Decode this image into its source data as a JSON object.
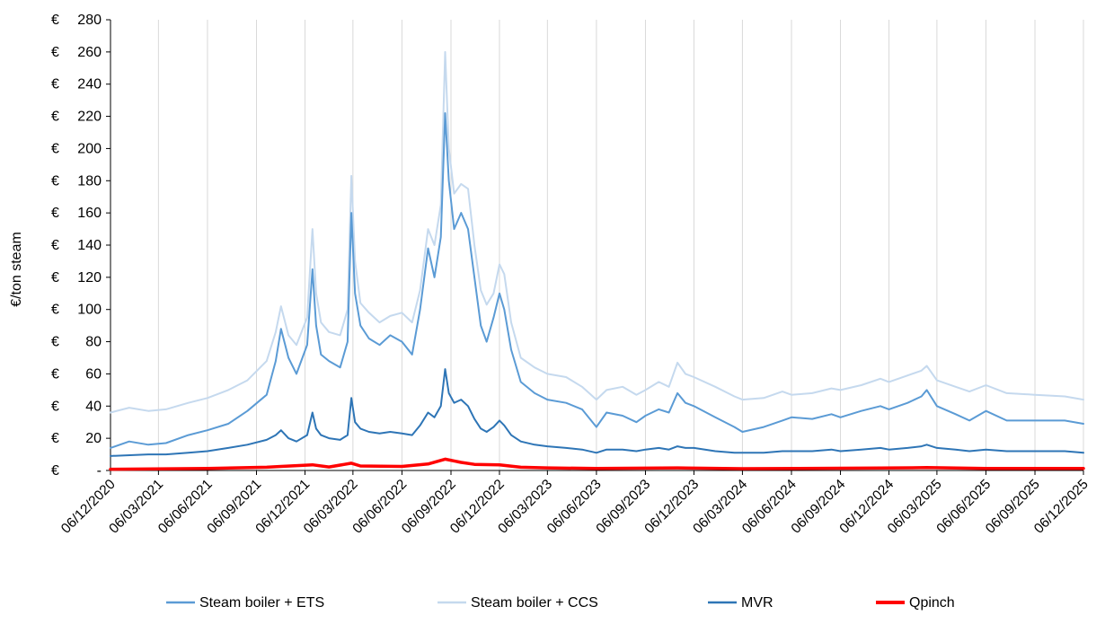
{
  "chart_data": {
    "type": "line",
    "title": "",
    "xlabel": "",
    "ylabel": "€/ton steam",
    "y_unit_prefix": "€",
    "ylim": [
      0,
      280
    ],
    "y_ticks": [
      "€ -",
      "€ 20",
      "€ 40",
      "€ 60",
      "€ 80",
      "€ 100",
      "€ 120",
      "€ 140",
      "€ 160",
      "€ 180",
      "€ 200",
      "€ 220",
      "€ 240",
      "€ 260",
      "€ 280"
    ],
    "x_range": [
      "2020-12-06",
      "2025-12-06"
    ],
    "x_ticks": [
      "06/12/2020",
      "06/03/2021",
      "06/06/2021",
      "06/09/2021",
      "06/12/2021",
      "06/03/2022",
      "06/06/2022",
      "06/09/2022",
      "06/12/2022",
      "06/03/2023",
      "06/06/2023",
      "06/09/2023",
      "06/12/2023",
      "06/03/2024",
      "06/06/2024",
      "06/09/2024",
      "06/12/2024",
      "06/03/2025",
      "06/06/2025",
      "06/09/2025",
      "06/12/2025"
    ],
    "grid": "vertical",
    "legend_position": "bottom",
    "series": [
      {
        "name": "Steam boiler + CCS",
        "color": "#c5d9ee",
        "width": 2,
        "points": [
          [
            "2020-12-06",
            36
          ],
          [
            "2021-01-10",
            39
          ],
          [
            "2021-02-15",
            37
          ],
          [
            "2021-03-20",
            38
          ],
          [
            "2021-05-01",
            42
          ],
          [
            "2021-06-06",
            45
          ],
          [
            "2021-07-15",
            50
          ],
          [
            "2021-08-20",
            56
          ],
          [
            "2021-09-25",
            68
          ],
          [
            "2021-10-12",
            86
          ],
          [
            "2021-10-22",
            102
          ],
          [
            "2021-11-05",
            84
          ],
          [
            "2021-11-20",
            78
          ],
          [
            "2021-12-10",
            95
          ],
          [
            "2021-12-20",
            150
          ],
          [
            "2021-12-27",
            110
          ],
          [
            "2022-01-05",
            92
          ],
          [
            "2022-01-20",
            86
          ],
          [
            "2022-02-10",
            84
          ],
          [
            "2022-02-24",
            100
          ],
          [
            "2022-03-03",
            183
          ],
          [
            "2022-03-10",
            130
          ],
          [
            "2022-03-20",
            104
          ],
          [
            "2022-04-05",
            98
          ],
          [
            "2022-04-25",
            92
          ],
          [
            "2022-05-15",
            96
          ],
          [
            "2022-06-06",
            98
          ],
          [
            "2022-06-25",
            92
          ],
          [
            "2022-07-10",
            112
          ],
          [
            "2022-07-25",
            150
          ],
          [
            "2022-08-06",
            140
          ],
          [
            "2022-08-18",
            165
          ],
          [
            "2022-08-26",
            260
          ],
          [
            "2022-09-02",
            200
          ],
          [
            "2022-09-12",
            172
          ],
          [
            "2022-09-25",
            178
          ],
          [
            "2022-10-08",
            175
          ],
          [
            "2022-10-20",
            140
          ],
          [
            "2022-11-01",
            112
          ],
          [
            "2022-11-12",
            103
          ],
          [
            "2022-11-25",
            110
          ],
          [
            "2022-12-06",
            128
          ],
          [
            "2022-12-15",
            122
          ],
          [
            "2022-12-28",
            92
          ],
          [
            "2023-01-15",
            70
          ],
          [
            "2023-02-10",
            64
          ],
          [
            "2023-03-06",
            60
          ],
          [
            "2023-04-10",
            58
          ],
          [
            "2023-05-10",
            52
          ],
          [
            "2023-06-06",
            44
          ],
          [
            "2023-06-25",
            50
          ],
          [
            "2023-07-25",
            52
          ],
          [
            "2023-08-20",
            47
          ],
          [
            "2023-09-06",
            50
          ],
          [
            "2023-10-01",
            55
          ],
          [
            "2023-10-20",
            52
          ],
          [
            "2023-11-05",
            67
          ],
          [
            "2023-11-20",
            60
          ],
          [
            "2023-12-06",
            58
          ],
          [
            "2024-01-15",
            52
          ],
          [
            "2024-02-20",
            46
          ],
          [
            "2024-03-06",
            44
          ],
          [
            "2024-04-15",
            45
          ],
          [
            "2024-05-20",
            49
          ],
          [
            "2024-06-06",
            47
          ],
          [
            "2024-07-15",
            48
          ],
          [
            "2024-08-20",
            51
          ],
          [
            "2024-09-06",
            50
          ],
          [
            "2024-10-15",
            53
          ],
          [
            "2024-11-20",
            57
          ],
          [
            "2024-12-06",
            55
          ],
          [
            "2025-01-10",
            59
          ],
          [
            "2025-02-05",
            62
          ],
          [
            "2025-02-15",
            65
          ],
          [
            "2025-03-06",
            56
          ],
          [
            "2025-04-10",
            52
          ],
          [
            "2025-05-06",
            49
          ],
          [
            "2025-06-06",
            53
          ],
          [
            "2025-07-15",
            48
          ],
          [
            "2025-09-06",
            47
          ],
          [
            "2025-11-01",
            46
          ],
          [
            "2025-12-06",
            44
          ]
        ]
      },
      {
        "name": "Steam boiler + ETS",
        "color": "#5b9bd5",
        "width": 2,
        "points": [
          [
            "2020-12-06",
            14
          ],
          [
            "2021-01-10",
            18
          ],
          [
            "2021-02-15",
            16
          ],
          [
            "2021-03-20",
            17
          ],
          [
            "2021-05-01",
            22
          ],
          [
            "2021-06-06",
            25
          ],
          [
            "2021-07-15",
            29
          ],
          [
            "2021-08-20",
            37
          ],
          [
            "2021-09-25",
            47
          ],
          [
            "2021-10-12",
            68
          ],
          [
            "2021-10-22",
            88
          ],
          [
            "2021-11-05",
            70
          ],
          [
            "2021-11-20",
            60
          ],
          [
            "2021-12-10",
            78
          ],
          [
            "2021-12-20",
            125
          ],
          [
            "2021-12-27",
            90
          ],
          [
            "2022-01-05",
            72
          ],
          [
            "2022-01-20",
            68
          ],
          [
            "2022-02-10",
            64
          ],
          [
            "2022-02-24",
            80
          ],
          [
            "2022-03-03",
            160
          ],
          [
            "2022-03-10",
            110
          ],
          [
            "2022-03-20",
            90
          ],
          [
            "2022-04-05",
            82
          ],
          [
            "2022-04-25",
            78
          ],
          [
            "2022-05-15",
            84
          ],
          [
            "2022-06-06",
            80
          ],
          [
            "2022-06-25",
            72
          ],
          [
            "2022-07-10",
            100
          ],
          [
            "2022-07-25",
            138
          ],
          [
            "2022-08-06",
            120
          ],
          [
            "2022-08-18",
            145
          ],
          [
            "2022-08-26",
            222
          ],
          [
            "2022-09-02",
            180
          ],
          [
            "2022-09-12",
            150
          ],
          [
            "2022-09-25",
            160
          ],
          [
            "2022-10-08",
            150
          ],
          [
            "2022-10-20",
            120
          ],
          [
            "2022-11-01",
            90
          ],
          [
            "2022-11-12",
            80
          ],
          [
            "2022-11-25",
            95
          ],
          [
            "2022-12-06",
            110
          ],
          [
            "2022-12-15",
            100
          ],
          [
            "2022-12-28",
            75
          ],
          [
            "2023-01-15",
            55
          ],
          [
            "2023-02-10",
            48
          ],
          [
            "2023-03-06",
            44
          ],
          [
            "2023-04-10",
            42
          ],
          [
            "2023-05-10",
            38
          ],
          [
            "2023-06-06",
            27
          ],
          [
            "2023-06-25",
            36
          ],
          [
            "2023-07-25",
            34
          ],
          [
            "2023-08-20",
            30
          ],
          [
            "2023-09-06",
            34
          ],
          [
            "2023-10-01",
            38
          ],
          [
            "2023-10-20",
            36
          ],
          [
            "2023-11-05",
            48
          ],
          [
            "2023-11-20",
            42
          ],
          [
            "2023-12-06",
            40
          ],
          [
            "2024-01-15",
            33
          ],
          [
            "2024-02-20",
            27
          ],
          [
            "2024-03-06",
            24
          ],
          [
            "2024-04-15",
            27
          ],
          [
            "2024-05-20",
            31
          ],
          [
            "2024-06-06",
            33
          ],
          [
            "2024-07-15",
            32
          ],
          [
            "2024-08-20",
            35
          ],
          [
            "2024-09-06",
            33
          ],
          [
            "2024-10-15",
            37
          ],
          [
            "2024-11-20",
            40
          ],
          [
            "2024-12-06",
            38
          ],
          [
            "2025-01-10",
            42
          ],
          [
            "2025-02-05",
            46
          ],
          [
            "2025-02-15",
            50
          ],
          [
            "2025-03-06",
            40
          ],
          [
            "2025-04-10",
            35
          ],
          [
            "2025-05-06",
            31
          ],
          [
            "2025-06-06",
            37
          ],
          [
            "2025-07-15",
            31
          ],
          [
            "2025-09-06",
            31
          ],
          [
            "2025-11-01",
            31
          ],
          [
            "2025-12-06",
            29
          ]
        ]
      },
      {
        "name": "MVR",
        "color": "#2e75b6",
        "width": 2,
        "points": [
          [
            "2020-12-06",
            9
          ],
          [
            "2021-02-15",
            10
          ],
          [
            "2021-03-20",
            10
          ],
          [
            "2021-05-01",
            11
          ],
          [
            "2021-06-06",
            12
          ],
          [
            "2021-07-15",
            14
          ],
          [
            "2021-08-20",
            16
          ],
          [
            "2021-09-25",
            19
          ],
          [
            "2021-10-12",
            22
          ],
          [
            "2021-10-22",
            25
          ],
          [
            "2021-11-05",
            20
          ],
          [
            "2021-11-20",
            18
          ],
          [
            "2021-12-10",
            22
          ],
          [
            "2021-12-20",
            36
          ],
          [
            "2021-12-27",
            26
          ],
          [
            "2022-01-05",
            22
          ],
          [
            "2022-01-20",
            20
          ],
          [
            "2022-02-10",
            19
          ],
          [
            "2022-02-24",
            22
          ],
          [
            "2022-03-03",
            45
          ],
          [
            "2022-03-10",
            30
          ],
          [
            "2022-03-20",
            26
          ],
          [
            "2022-04-05",
            24
          ],
          [
            "2022-04-25",
            23
          ],
          [
            "2022-05-15",
            24
          ],
          [
            "2022-06-06",
            23
          ],
          [
            "2022-06-25",
            22
          ],
          [
            "2022-07-10",
            28
          ],
          [
            "2022-07-25",
            36
          ],
          [
            "2022-08-06",
            33
          ],
          [
            "2022-08-18",
            40
          ],
          [
            "2022-08-26",
            63
          ],
          [
            "2022-09-02",
            48
          ],
          [
            "2022-09-12",
            42
          ],
          [
            "2022-09-25",
            44
          ],
          [
            "2022-10-08",
            40
          ],
          [
            "2022-10-20",
            32
          ],
          [
            "2022-11-01",
            26
          ],
          [
            "2022-11-12",
            24
          ],
          [
            "2022-11-25",
            27
          ],
          [
            "2022-12-06",
            31
          ],
          [
            "2022-12-15",
            28
          ],
          [
            "2022-12-28",
            22
          ],
          [
            "2023-01-15",
            18
          ],
          [
            "2023-02-10",
            16
          ],
          [
            "2023-03-06",
            15
          ],
          [
            "2023-04-10",
            14
          ],
          [
            "2023-05-10",
            13
          ],
          [
            "2023-06-06",
            11
          ],
          [
            "2023-06-25",
            13
          ],
          [
            "2023-07-25",
            13
          ],
          [
            "2023-08-20",
            12
          ],
          [
            "2023-09-06",
            13
          ],
          [
            "2023-10-01",
            14
          ],
          [
            "2023-10-20",
            13
          ],
          [
            "2023-11-05",
            15
          ],
          [
            "2023-11-20",
            14
          ],
          [
            "2023-12-06",
            14
          ],
          [
            "2024-01-15",
            12
          ],
          [
            "2024-02-20",
            11
          ],
          [
            "2024-03-06",
            11
          ],
          [
            "2024-04-15",
            11
          ],
          [
            "2024-05-20",
            12
          ],
          [
            "2024-06-06",
            12
          ],
          [
            "2024-07-15",
            12
          ],
          [
            "2024-08-20",
            13
          ],
          [
            "2024-09-06",
            12
          ],
          [
            "2024-10-15",
            13
          ],
          [
            "2024-11-20",
            14
          ],
          [
            "2024-12-06",
            13
          ],
          [
            "2025-01-10",
            14
          ],
          [
            "2025-02-05",
            15
          ],
          [
            "2025-02-15",
            16
          ],
          [
            "2025-03-06",
            14
          ],
          [
            "2025-04-10",
            13
          ],
          [
            "2025-05-06",
            12
          ],
          [
            "2025-06-06",
            13
          ],
          [
            "2025-07-15",
            12
          ],
          [
            "2025-09-06",
            12
          ],
          [
            "2025-11-01",
            12
          ],
          [
            "2025-12-06",
            11
          ]
        ]
      },
      {
        "name": "Qpinch",
        "color": "#ff0000",
        "width": 3.5,
        "points": [
          [
            "2020-12-06",
            0.8
          ],
          [
            "2021-06-06",
            1.2
          ],
          [
            "2021-09-25",
            2
          ],
          [
            "2021-10-22",
            2.5
          ],
          [
            "2021-12-20",
            3.5
          ],
          [
            "2022-01-20",
            2.2
          ],
          [
            "2022-03-03",
            4.5
          ],
          [
            "2022-03-20",
            2.8
          ],
          [
            "2022-06-06",
            2.5
          ],
          [
            "2022-07-25",
            4
          ],
          [
            "2022-08-26",
            7
          ],
          [
            "2022-09-25",
            5
          ],
          [
            "2022-10-20",
            3.8
          ],
          [
            "2022-12-06",
            3.5
          ],
          [
            "2023-01-15",
            2
          ],
          [
            "2023-03-06",
            1.6
          ],
          [
            "2023-06-06",
            1.2
          ],
          [
            "2023-11-05",
            1.6
          ],
          [
            "2024-03-06",
            1.1
          ],
          [
            "2024-11-20",
            1.5
          ],
          [
            "2025-02-15",
            1.8
          ],
          [
            "2025-06-06",
            1.3
          ],
          [
            "2025-12-06",
            1.2
          ]
        ]
      }
    ],
    "legend": [
      {
        "name": "Steam boiler + ETS",
        "color": "#5b9bd5"
      },
      {
        "name": "Steam boiler + CCS",
        "color": "#c5d9ee"
      },
      {
        "name": "MVR",
        "color": "#2e75b6"
      },
      {
        "name": "Qpinch",
        "color": "#ff0000"
      }
    ]
  }
}
